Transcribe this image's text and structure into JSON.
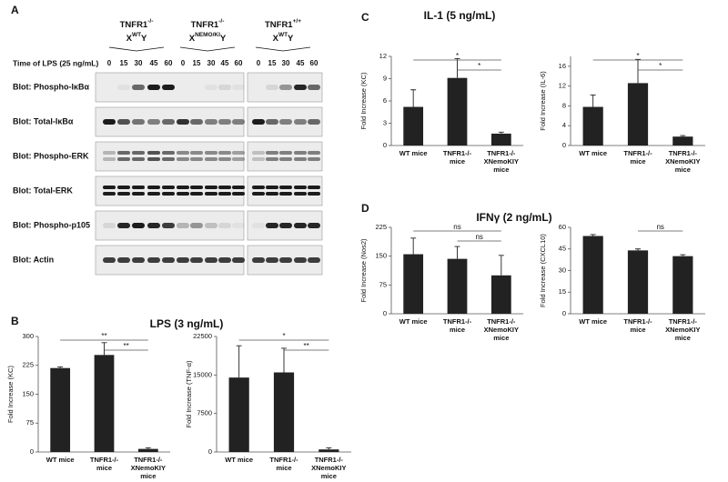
{
  "panel_a": {
    "label": "A",
    "groups": [
      {
        "line1": "TNFR1",
        "sup1": "-/-",
        "line2": "X",
        "sup2": "WT",
        "line3": "Y"
      },
      {
        "line1": "TNFR1",
        "sup1": "-/-",
        "line2": "X",
        "sup2": "NEMO/KI",
        "line3": "Y"
      },
      {
        "line1": "TNFR1",
        "sup1": "+/+",
        "line2": "X",
        "sup2": "WT",
        "line3": "Y"
      }
    ],
    "time_label": "Time of LPS (25 ng/mL)",
    "times": [
      "0",
      "15",
      "30",
      "45",
      "60"
    ],
    "blots": [
      "Blot:  Phospho-IκBα",
      "Blot:  Total-IκBα",
      "Blot:  Phospho-ERK",
      "Blot:  Total-ERK",
      "Blot:  Phospho-p105",
      "Blot:  Actin"
    ]
  },
  "panels": [
    {
      "label": "B",
      "title": "LPS (3 ng/mL)"
    },
    {
      "label": "C",
      "title": "IL-1 (5 ng/mL)"
    },
    {
      "label": "D",
      "title": "IFNγ (2 ng/mL)"
    }
  ],
  "chart_data": [
    {
      "type": "bar",
      "ylabel": "Fold Increase (KC)",
      "categories": [
        "WT mice",
        "TNFR1-/- mice",
        "TNFR1-/-XNemoKIY mice"
      ],
      "values": [
        218,
        252,
        8
      ],
      "errors": [
        3,
        32,
        3
      ],
      "color": "#222222",
      "ylim": [
        0,
        300
      ],
      "yticks": [
        0,
        75,
        150,
        225,
        300
      ],
      "annotations": [
        "**",
        "**"
      ]
    },
    {
      "type": "bar",
      "ylabel": "Fold Increase (TNF-α)",
      "categories": [
        "WT mice",
        "TNFR1-/- mice",
        "TNFR1-/-XNemoKIY mice"
      ],
      "values": [
        14500,
        15500,
        500
      ],
      "errors": [
        6200,
        4700,
        300
      ],
      "color": "#222222",
      "ylim": [
        0,
        22500
      ],
      "yticks": [
        0,
        7500,
        15000,
        22500
      ],
      "annotations": [
        "*",
        "**"
      ]
    },
    {
      "type": "bar",
      "ylabel": "Fold Increase (KC)",
      "categories": [
        "WT mice",
        "TNFR1-/- mice",
        "TNFR1-/-XNemoKIY mice"
      ],
      "values": [
        5.2,
        9.1,
        1.6
      ],
      "errors": [
        2.3,
        2.6,
        0.2
      ],
      "color": "#222222",
      "ylim": [
        0,
        12
      ],
      "yticks": [
        0,
        3,
        6,
        9,
        12
      ],
      "annotations": [
        "*",
        "*"
      ]
    },
    {
      "type": "bar",
      "ylabel": "Fold Increase (IL-6)",
      "categories": [
        "WT mice",
        "TNFR1-/- mice",
        "TNFR1-/-XNemoKIY mice"
      ],
      "values": [
        7.8,
        12.6,
        1.8
      ],
      "errors": [
        2.4,
        4.8,
        0.2
      ],
      "color": "#222222",
      "ylim": [
        0,
        18
      ],
      "yticks": [
        0,
        4,
        8,
        12,
        16
      ],
      "annotations": [
        "*",
        "*"
      ]
    },
    {
      "type": "bar",
      "ylabel": "Fold Increase (Nos2)",
      "categories": [
        "WT mice",
        "TNFR1-/- mice",
        "TNFR1-/-XNemoKIY mice"
      ],
      "values": [
        155,
        143,
        100
      ],
      "errors": [
        42,
        32,
        52
      ],
      "color": "#222222",
      "ylim": [
        0,
        225
      ],
      "yticks": [
        0,
        75,
        150,
        225
      ],
      "annotations": [
        "ns",
        "ns"
      ]
    },
    {
      "type": "bar",
      "ylabel": "Fold Increase (CXCL10)",
      "categories": [
        "WT mice",
        "TNFR1-/- mice",
        "TNFR1-/-XNemoKIY mice"
      ],
      "values": [
        54,
        44,
        40
      ],
      "errors": [
        1,
        1,
        1
      ],
      "color": "#222222",
      "ylim": [
        0,
        60
      ],
      "yticks": [
        0,
        15,
        30,
        45,
        60
      ],
      "annotations": [
        "ns"
      ]
    }
  ]
}
